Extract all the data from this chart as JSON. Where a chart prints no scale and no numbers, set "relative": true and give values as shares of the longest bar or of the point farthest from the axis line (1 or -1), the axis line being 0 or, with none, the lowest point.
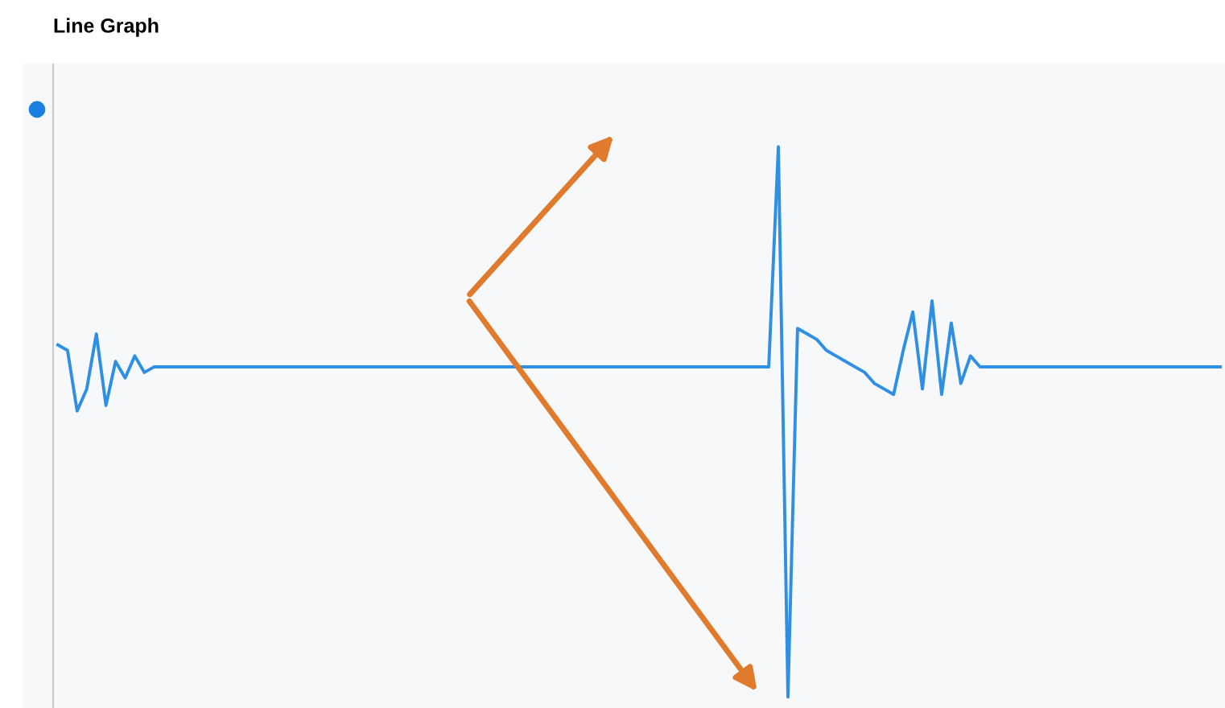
{
  "chart_data": {
    "type": "line",
    "title": "Line Graph",
    "relative": true,
    "grid": false,
    "marker": "none",
    "line_style": "solid",
    "categories": [
      null,
      null,
      null,
      null,
      null,
      null,
      null,
      null,
      null,
      null,
      null,
      null,
      null,
      null,
      null,
      null,
      null,
      null,
      null,
      null,
      null,
      null,
      null,
      null,
      null,
      null,
      null,
      null,
      null,
      null,
      null,
      null,
      null,
      null,
      null,
      null,
      null,
      null,
      null,
      null,
      null,
      null,
      null,
      null,
      null,
      null,
      null,
      null,
      null,
      null,
      null,
      null,
      null,
      null,
      null,
      null,
      null,
      null,
      null,
      null,
      null,
      null,
      null,
      null,
      null,
      null,
      null,
      null,
      null,
      null,
      null,
      null,
      null,
      null,
      null,
      null,
      null,
      null,
      null,
      null,
      null,
      null,
      null,
      null,
      null,
      null,
      null,
      null,
      null,
      null,
      null,
      null,
      null,
      null,
      null,
      null,
      null,
      null,
      null,
      null,
      null,
      null,
      null,
      null,
      null,
      null,
      null,
      null,
      null,
      null,
      null,
      null,
      null,
      null,
      null,
      null,
      null,
      null,
      null,
      null,
      null,
      null
    ],
    "series": [
      {
        "color": "#2f8fe3",
        "values": [
          0.64,
          0.63,
          0.52,
          0.56,
          0.66,
          0.53,
          0.61,
          0.58,
          0.62,
          0.59,
          0.6,
          0.6,
          0.6,
          0.6,
          0.6,
          0.6,
          0.6,
          0.6,
          0.6,
          0.6,
          0.6,
          0.6,
          0.6,
          0.6,
          0.6,
          0.6,
          0.6,
          0.6,
          0.6,
          0.6,
          0.6,
          0.6,
          0.6,
          0.6,
          0.6,
          0.6,
          0.6,
          0.6,
          0.6,
          0.6,
          0.6,
          0.6,
          0.6,
          0.6,
          0.6,
          0.6,
          0.6,
          0.6,
          0.6,
          0.6,
          0.6,
          0.6,
          0.6,
          0.6,
          0.6,
          0.6,
          0.6,
          0.6,
          0.6,
          0.6,
          0.6,
          0.6,
          0.6,
          0.6,
          0.6,
          0.6,
          0.6,
          0.6,
          0.6,
          0.6,
          0.6,
          0.6,
          0.6,
          0.6,
          0.6,
          1.0,
          0.0,
          0.67,
          0.66,
          0.65,
          0.63,
          0.62,
          0.61,
          0.6,
          0.59,
          0.57,
          0.56,
          0.55,
          0.63,
          0.7,
          0.56,
          0.72,
          0.55,
          0.68,
          0.57,
          0.62,
          0.6,
          0.6,
          0.6,
          0.6,
          0.6,
          0.6,
          0.6,
          0.6,
          0.6,
          0.6,
          0.6,
          0.6,
          0.6,
          0.6,
          0.6,
          0.6,
          0.6,
          0.6,
          0.6,
          0.6,
          0.6,
          0.6,
          0.6,
          0.6,
          0.6,
          0.6
        ]
      }
    ]
  }
}
